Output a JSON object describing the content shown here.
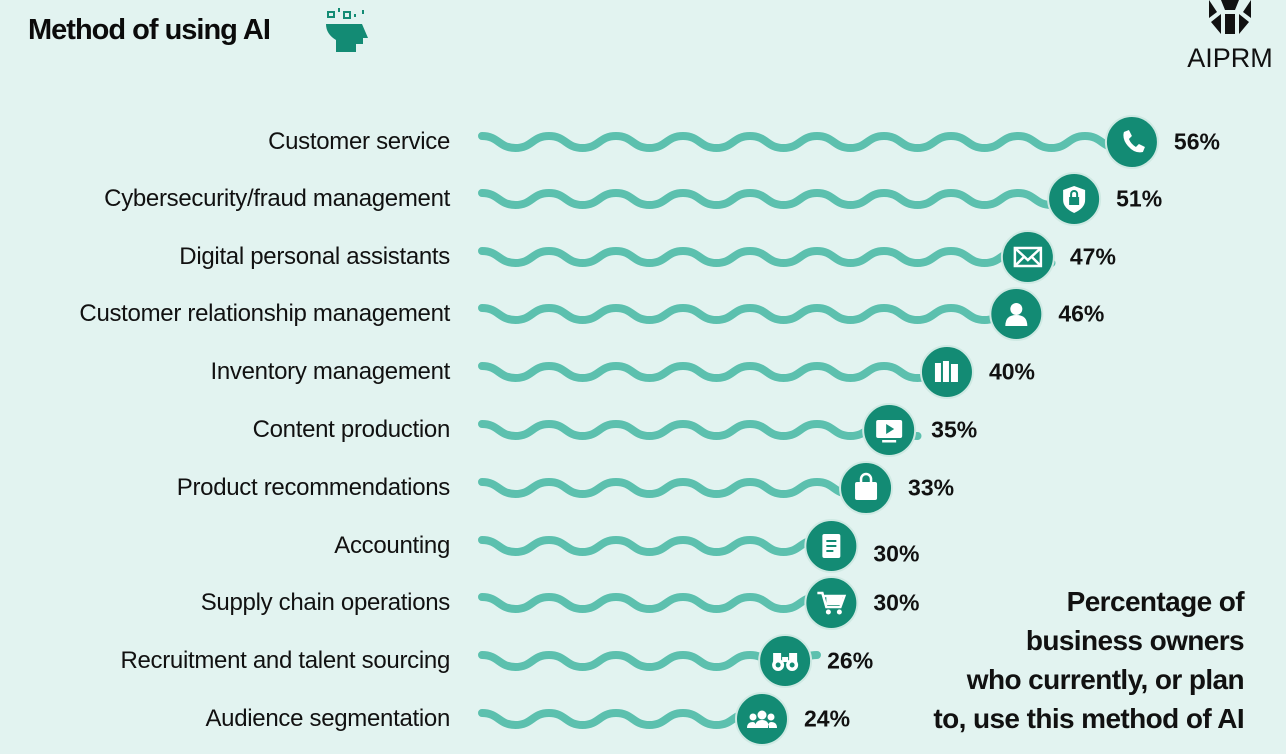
{
  "chart_data": {
    "type": "bar",
    "title": "Method of using AI",
    "categories": [
      "Customer service",
      "Cybersecurity/fraud management",
      "Digital personal assistants",
      "Customer relationship management",
      "Inventory management",
      "Content production",
      "Product recommendations",
      "Accounting",
      "Supply chain operations",
      "Recruitment and talent sourcing",
      "Audience segmentation"
    ],
    "values": [
      56,
      51,
      47,
      46,
      40,
      35,
      33,
      30,
      30,
      26,
      24
    ],
    "value_labels": [
      "56%",
      "51%",
      "47%",
      "46%",
      "40%",
      "35%",
      "33%",
      "30%",
      "30%",
      "26%",
      "24%"
    ],
    "icons": [
      "phone-icon",
      "shield-lock-icon",
      "envelope-icon",
      "person-icon",
      "books-icon",
      "video-play-icon",
      "shopping-bag-icon",
      "document-icon",
      "cart-icon",
      "binoculars-icon",
      "group-icon"
    ],
    "annotation": "Percentage of business owners who currently, or plan to, use this method of AI",
    "colors": {
      "wave": "#5cc0ae",
      "marker": "#138b74",
      "background": "#e2f3f0"
    }
  },
  "brand": {
    "logo_text": "AIPRM"
  },
  "note_lines": [
    "Percentage of",
    "business owners",
    "who currently, or plan",
    "to, use this method of AI"
  ]
}
